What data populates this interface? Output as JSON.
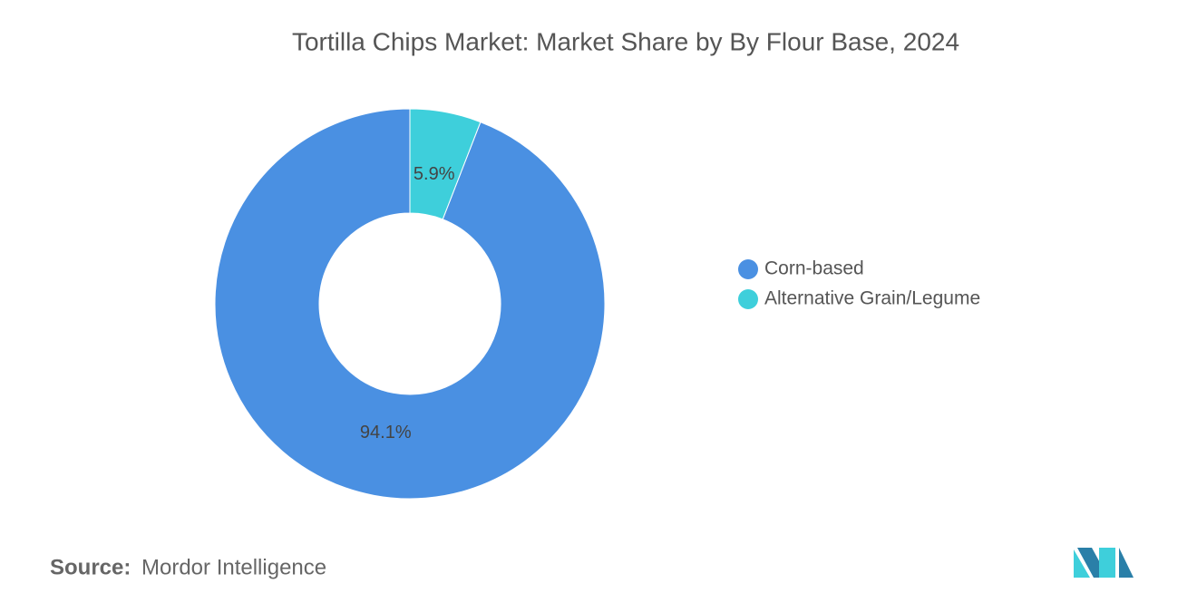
{
  "chart_data": {
    "type": "donut",
    "title": "Tortilla Chips Market: Market Share by By Flour Base, 2024",
    "categories": [
      "Corn-based",
      "Alternative Grain/Legume"
    ],
    "values": [
      94.1,
      5.9
    ],
    "value_labels": [
      "94.1%",
      "5.9%"
    ],
    "colors": [
      "#4a90e2",
      "#3ecfdb"
    ],
    "legend": "right"
  },
  "footer": {
    "source_label": "Source:",
    "source": "Mordor Intelligence"
  }
}
